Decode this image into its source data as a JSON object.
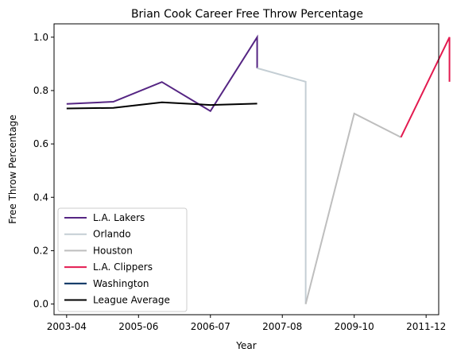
{
  "chart_data": {
    "type": "line",
    "title": "Brian Cook Career Free Throw Percentage",
    "xlabel": "Year",
    "ylabel": "Free Throw Percentage",
    "xlim": [
      -0.35,
      10.35
    ],
    "ylim": [
      -0.04,
      1.05
    ],
    "x_ticks": [
      {
        "pos": 0,
        "label": "2003-04"
      },
      {
        "pos": 2,
        "label": "2005-06"
      },
      {
        "pos": 4,
        "label": "2006-07"
      },
      {
        "pos": 6,
        "label": "2007-08"
      },
      {
        "pos": 8,
        "label": "2009-10"
      },
      {
        "pos": 10,
        "label": "2011-12"
      }
    ],
    "y_ticks": [
      0.0,
      0.2,
      0.4,
      0.6,
      0.8,
      1.0
    ],
    "y_tick_labels": [
      "0.0",
      "0.2",
      "0.4",
      "0.6",
      "0.8",
      "1.0"
    ],
    "series": [
      {
        "name": "L.A. Lakers",
        "color": "#552583",
        "points": [
          [
            0,
            0.75
          ],
          [
            1.3,
            0.758
          ],
          [
            2.65,
            0.832
          ],
          [
            4,
            0.723
          ],
          [
            5.3,
            1.0
          ],
          [
            5.3,
            0.884
          ]
        ]
      },
      {
        "name": "Orlando",
        "color": "#C4CED4",
        "points": [
          [
            5.3,
            0.884
          ],
          [
            6.65,
            0.833
          ],
          [
            6.65,
            0.0
          ]
        ]
      },
      {
        "name": "Houston",
        "color": "#BEBEBE",
        "points": [
          [
            6.65,
            0.0
          ],
          [
            8,
            0.714
          ],
          [
            9.3,
            0.625
          ]
        ]
      },
      {
        "name": "L.A. Clippers",
        "color": "#E31A4F",
        "points": [
          [
            9.3,
            0.625
          ],
          [
            10.65,
            1.0
          ],
          [
            10.65,
            0.833
          ]
        ]
      },
      {
        "name": "Washington",
        "color": "#002B5C",
        "points": []
      },
      {
        "name": "League Average",
        "color": "#000000",
        "points": [
          [
            0,
            0.733
          ],
          [
            1.3,
            0.735
          ],
          [
            2.65,
            0.756
          ],
          [
            4,
            0.746
          ],
          [
            5.3,
            0.751
          ]
        ]
      }
    ],
    "legend_location": "lower-left"
  }
}
